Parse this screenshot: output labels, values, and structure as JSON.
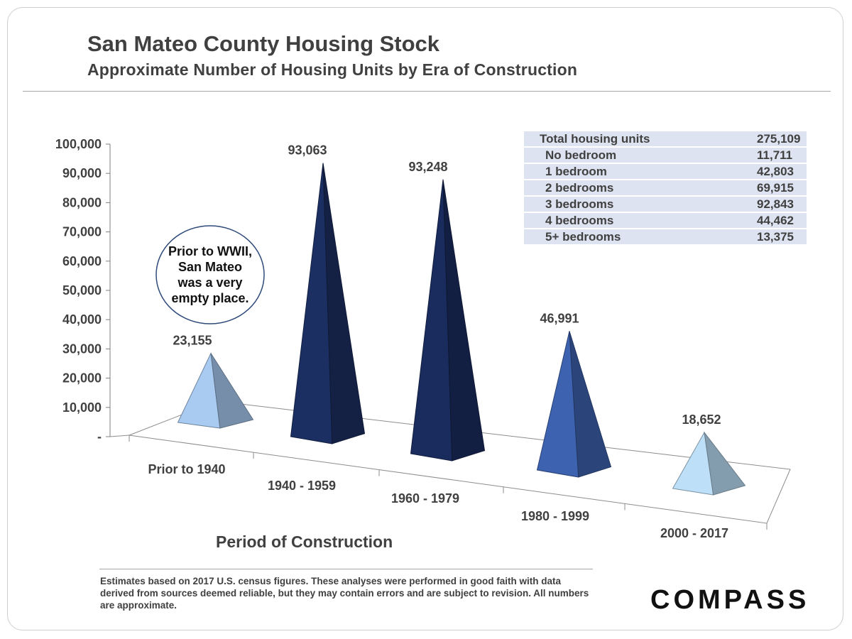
{
  "header": {
    "title": "San Mateo County Housing Stock",
    "subtitle": "Approximate Number of Housing Units by Era of Construction"
  },
  "chart_data": {
    "type": "bar",
    "style": "3d-pyramid",
    "categories": [
      "Prior to 1940",
      "1940 - 1959",
      "1960 - 1979",
      "1980 - 1999",
      "2000 - 2017"
    ],
    "values": [
      23155,
      93063,
      93248,
      46991,
      18652
    ],
    "value_labels": [
      "23,155",
      "93,063",
      "93,248",
      "46,991",
      "18,652"
    ],
    "colors": [
      "#a9cbf2",
      "#1c2f63",
      "#1a2c5e",
      "#3d63b0",
      "#bde0f8"
    ],
    "ylim": [
      0,
      100000
    ],
    "yticks": [
      "-",
      "10,000",
      "20,000",
      "30,000",
      "40,000",
      "50,000",
      "60,000",
      "70,000",
      "80,000",
      "90,000",
      "100,000"
    ],
    "xlabel": "Period of Construction",
    "ylabel": "",
    "grid": false
  },
  "callout": {
    "text": "Prior to WWII,\nSan Mateo\nwas a very\nempty place."
  },
  "bedroom_table": {
    "rows": [
      {
        "label": "Total housing units",
        "value": "275,109"
      },
      {
        "label": "No bedroom",
        "value": "11,711"
      },
      {
        "label": "1 bedroom",
        "value": "42,803"
      },
      {
        "label": "2 bedrooms",
        "value": "69,915"
      },
      {
        "label": "3 bedrooms",
        "value": "92,843"
      },
      {
        "label": "4 bedrooms",
        "value": "44,462"
      },
      {
        "label": "5+ bedrooms",
        "value": "13,375"
      }
    ]
  },
  "footnote": "Estimates based on 2017 U.S. census figures. These analyses were performed in good faith with data derived from sources deemed reliable, but they may contain errors and are subject to revision. All numbers are approximate.",
  "logo": "COMPASS"
}
